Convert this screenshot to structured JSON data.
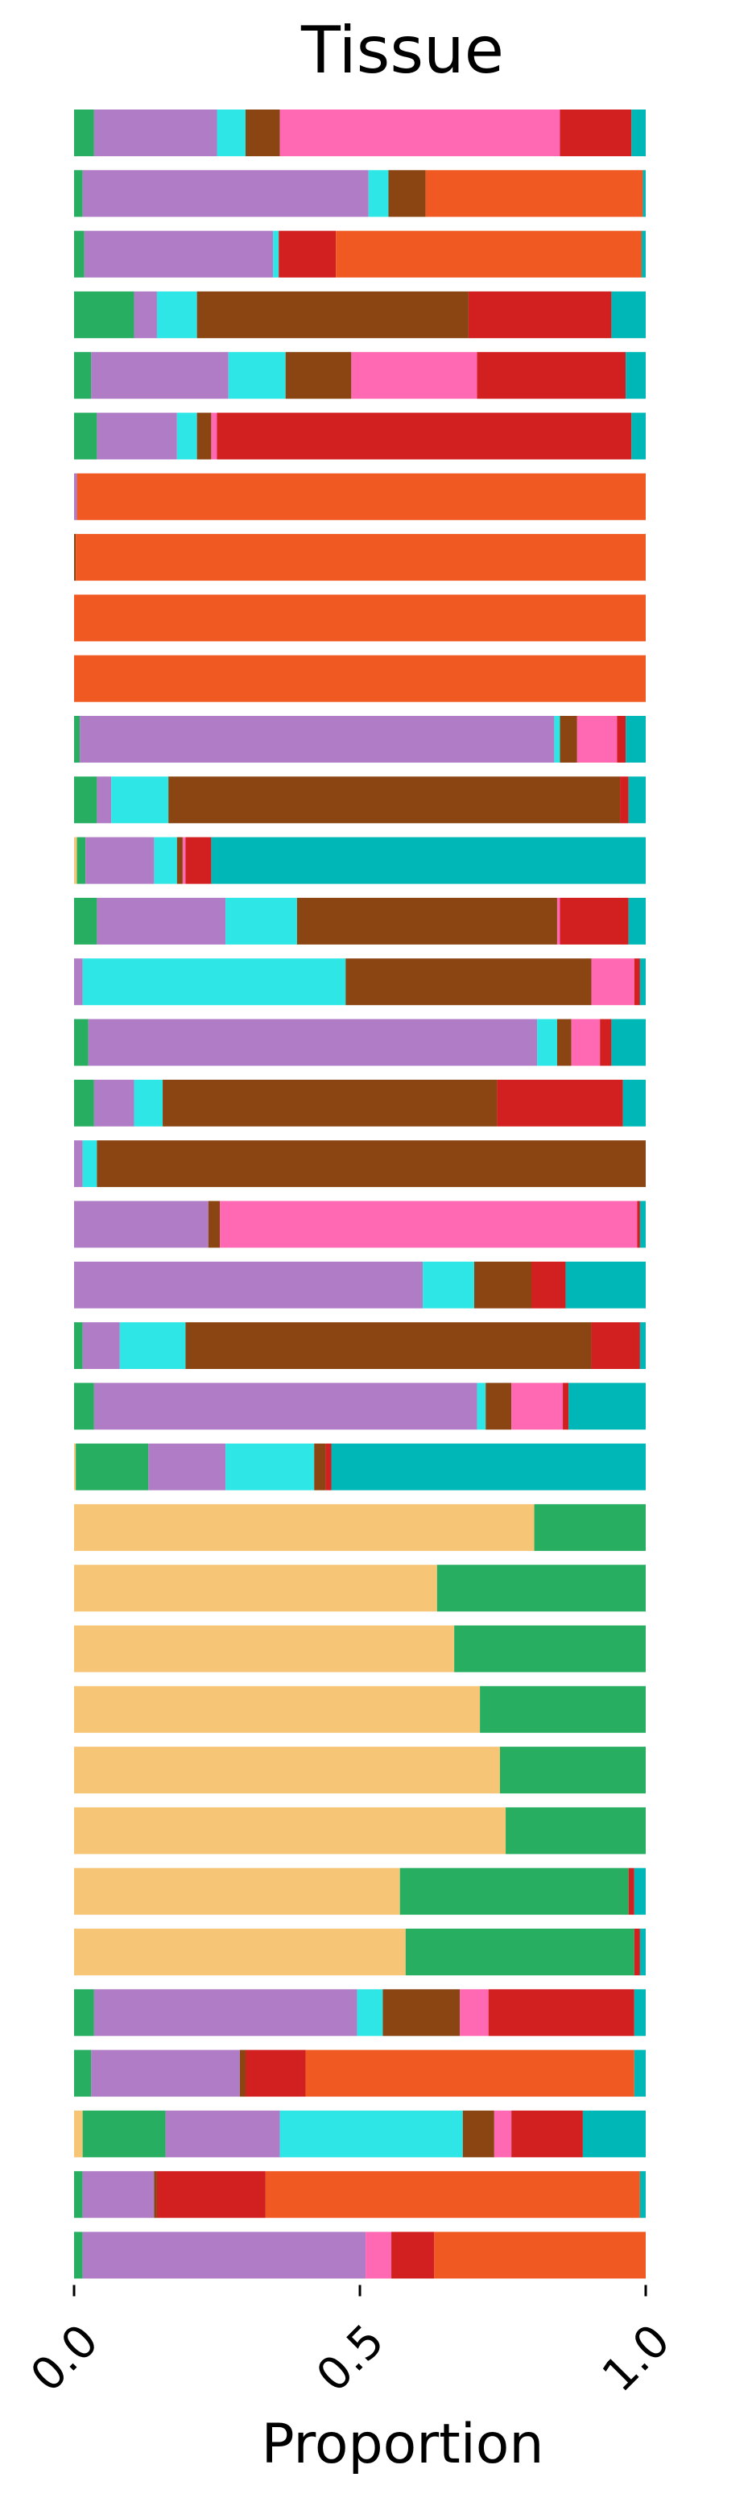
{
  "chart_data": {
    "type": "bar",
    "orientation": "horizontal",
    "stacked": true,
    "title": "Tissue",
    "xlabel": "Proportion",
    "ylabel": "",
    "xlim": [
      0,
      1
    ],
    "xticks": [
      "0.0",
      "0.5",
      "1.0"
    ],
    "grid": false,
    "colors": [
      "#f7c576",
      "#27ae60",
      "#b07cc6",
      "#2ee6e6",
      "#8b4513",
      "#ff69b4",
      "#d21f1f",
      "#f05a22",
      "#00b7b7"
    ],
    "rows": [
      [
        0,
        0.035,
        0.215,
        0.05,
        0.06,
        0.49,
        0.125,
        0,
        0.025
      ],
      [
        0,
        0.015,
        0.5,
        0.035,
        0.065,
        0,
        0,
        0.38,
        0.005
      ],
      [
        0,
        0.018,
        0.33,
        0.01,
        0,
        0,
        0.1,
        0.535,
        0.007
      ],
      [
        0,
        0.105,
        0.04,
        0.07,
        0.475,
        0,
        0.25,
        0,
        0.06
      ],
      [
        0,
        0.03,
        0.24,
        0.1,
        0.115,
        0.22,
        0.26,
        0,
        0.035
      ],
      [
        0,
        0.04,
        0.14,
        0.035,
        0.025,
        0.01,
        0.725,
        0,
        0.025
      ],
      [
        0,
        0,
        0.005,
        0,
        0,
        0,
        0,
        0.995,
        0
      ],
      [
        0,
        0,
        0,
        0,
        0.003,
        0,
        0,
        0.997,
        0
      ],
      [
        0,
        0,
        0,
        0,
        0,
        0,
        0,
        1,
        0
      ],
      [
        0,
        0,
        0,
        0,
        0,
        0,
        0,
        1,
        0
      ],
      [
        0,
        0.01,
        0.83,
        0.01,
        0.03,
        0.07,
        0.015,
        0,
        0.035
      ],
      [
        0,
        0.04,
        0.025,
        0.1,
        0.79,
        0,
        0.015,
        0,
        0.03
      ],
      [
        0.005,
        0.015,
        0.12,
        0.04,
        0.01,
        0.005,
        0.045,
        0,
        0.76
      ],
      [
        0,
        0.04,
        0.225,
        0.125,
        0.455,
        0.005,
        0.12,
        0,
        0.03
      ],
      [
        0,
        0,
        0.015,
        0.46,
        0.43,
        0.075,
        0.01,
        0,
        0.01
      ],
      [
        0,
        0.025,
        0.785,
        0.035,
        0.025,
        0.05,
        0.02,
        0,
        0.06
      ],
      [
        0,
        0.035,
        0.07,
        0.05,
        0.585,
        0,
        0.22,
        0,
        0.04
      ],
      [
        0,
        0,
        0.015,
        0.025,
        0.96,
        0,
        0,
        0,
        0
      ],
      [
        0,
        0,
        0.235,
        0,
        0.02,
        0.73,
        0.005,
        0,
        0.01
      ],
      [
        0,
        0,
        0.61,
        0.09,
        0.1,
        0,
        0.06,
        0,
        0.14
      ],
      [
        0,
        0.015,
        0.065,
        0.115,
        0.71,
        0,
        0.085,
        0,
        0.01
      ],
      [
        0,
        0.035,
        0.67,
        0.015,
        0.045,
        0.09,
        0.01,
        0,
        0.135
      ],
      [
        0.003,
        0.127,
        0.135,
        0.155,
        0.02,
        0,
        0.01,
        0,
        0.55
      ],
      [
        0.805,
        0.195,
        0,
        0,
        0,
        0,
        0,
        0,
        0
      ],
      [
        0.635,
        0.365,
        0,
        0,
        0,
        0,
        0,
        0,
        0
      ],
      [
        0.665,
        0.335,
        0,
        0,
        0,
        0,
        0,
        0,
        0
      ],
      [
        0.71,
        0.29,
        0,
        0,
        0,
        0,
        0,
        0,
        0
      ],
      [
        0.745,
        0.255,
        0,
        0,
        0,
        0,
        0,
        0,
        0
      ],
      [
        0.755,
        0.245,
        0,
        0,
        0,
        0,
        0,
        0,
        0
      ],
      [
        0.57,
        0.4,
        0,
        0,
        0,
        0,
        0.01,
        0,
        0.02
      ],
      [
        0.58,
        0.4,
        0,
        0,
        0,
        0,
        0.01,
        0,
        0.01
      ],
      [
        0,
        0.035,
        0.46,
        0.045,
        0.135,
        0.05,
        0.255,
        0,
        0.02
      ],
      [
        0,
        0.03,
        0.26,
        0,
        0.01,
        0,
        0.105,
        0.575,
        0.02
      ],
      [
        0.015,
        0.145,
        0.2,
        0.32,
        0.055,
        0.03,
        0.125,
        0,
        0.11
      ],
      [
        0,
        0.015,
        0.125,
        0,
        0.005,
        0,
        0.19,
        0.655,
        0.01
      ],
      [
        0,
        0.015,
        0.495,
        0,
        0,
        0.045,
        0.075,
        0.37,
        0
      ]
    ]
  }
}
